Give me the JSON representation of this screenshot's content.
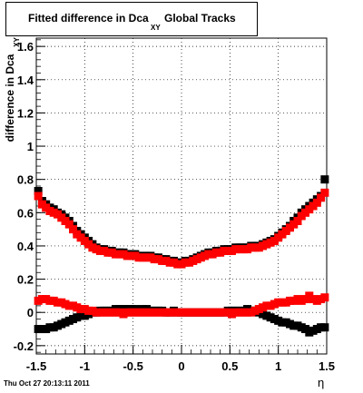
{
  "title": {
    "main": "Fitted difference in Dca",
    "sub": "XY",
    "tail": "Global Tracks"
  },
  "ylabel": "difference in Dca",
  "ylabel_sub": "XY",
  "xlabel": "η",
  "timestamp": "Thu Oct 27 20:13:11 2011",
  "colors": {
    "series_black": "#000000",
    "series_red": "#ff0000",
    "grid": "#000000",
    "background": "#ffffff"
  },
  "chart_data": {
    "type": "scatter",
    "title": "Fitted difference in Dca XY Global Tracks",
    "xlabel": "η",
    "ylabel": "difference in Dca XY",
    "xlim": [
      -1.5,
      1.5
    ],
    "ylim": [
      -0.25,
      1.65
    ],
    "xticks": [
      "-1.5",
      "-1",
      "-0.5",
      "0",
      "0.5",
      "1",
      "1.5"
    ],
    "yticks": [
      "-0.2",
      "0",
      "0.2",
      "0.4",
      "0.6",
      "0.8",
      "1",
      "1.2",
      "1.4",
      "1.6"
    ],
    "grid": true,
    "series": [
      {
        "color": "#000000",
        "x": [
          -1.48,
          -1.44,
          -1.4,
          -1.36,
          -1.32,
          -1.28,
          -1.24,
          -1.2,
          -1.16,
          -1.12,
          -1.08,
          -1.04,
          -1.0,
          -0.96,
          -0.92,
          -0.88,
          -0.84,
          -0.8,
          -0.76,
          -0.72,
          -0.68,
          -0.64,
          -0.6,
          -0.56,
          -0.52,
          -0.48,
          -0.44,
          -0.4,
          -0.36,
          -0.32,
          -0.28,
          -0.24,
          -0.2,
          -0.16,
          -0.12,
          -0.08,
          -0.04,
          0.0,
          0.04,
          0.08,
          0.12,
          0.16,
          0.2,
          0.24,
          0.28,
          0.32,
          0.36,
          0.4,
          0.44,
          0.48,
          0.52,
          0.56,
          0.6,
          0.64,
          0.68,
          0.72,
          0.76,
          0.8,
          0.84,
          0.88,
          0.92,
          0.96,
          1.0,
          1.04,
          1.08,
          1.12,
          1.16,
          1.2,
          1.24,
          1.28,
          1.32,
          1.36,
          1.4,
          1.44,
          1.48
        ],
        "y": [
          0.73,
          0.67,
          0.65,
          0.63,
          0.62,
          0.6,
          0.59,
          0.57,
          0.55,
          0.52,
          0.49,
          0.47,
          0.45,
          0.43,
          0.41,
          0.39,
          0.38,
          0.38,
          0.37,
          0.37,
          0.36,
          0.36,
          0.36,
          0.35,
          0.35,
          0.35,
          0.34,
          0.34,
          0.34,
          0.34,
          0.33,
          0.33,
          0.32,
          0.32,
          0.31,
          0.31,
          0.3,
          0.3,
          0.31,
          0.31,
          0.32,
          0.33,
          0.34,
          0.35,
          0.36,
          0.36,
          0.37,
          0.37,
          0.38,
          0.38,
          0.38,
          0.39,
          0.39,
          0.39,
          0.39,
          0.4,
          0.4,
          0.4,
          0.41,
          0.42,
          0.43,
          0.44,
          0.46,
          0.48,
          0.5,
          0.52,
          0.55,
          0.57,
          0.6,
          0.62,
          0.64,
          0.66,
          0.68,
          0.7,
          0.8
        ]
      },
      {
        "color": "#000000",
        "x": [
          -1.48,
          -1.44,
          -1.4,
          -1.36,
          -1.32,
          -1.28,
          -1.24,
          -1.2,
          -1.16,
          -1.12,
          -1.08,
          -1.04,
          -1.0,
          -0.96,
          -0.92,
          -0.88,
          -0.84,
          -0.8,
          -0.76,
          -0.72,
          -0.68,
          -0.64,
          -0.6,
          -0.56,
          -0.52,
          -0.48,
          -0.44,
          -0.4,
          -0.36,
          -0.32,
          -0.28,
          -0.24,
          -0.2,
          -0.16,
          -0.12,
          -0.08,
          -0.04,
          0.0,
          0.04,
          0.08,
          0.12,
          0.16,
          0.2,
          0.24,
          0.28,
          0.32,
          0.36,
          0.4,
          0.44,
          0.48,
          0.52,
          0.56,
          0.6,
          0.64,
          0.68,
          0.72,
          0.76,
          0.8,
          0.84,
          0.88,
          0.92,
          0.96,
          1.0,
          1.04,
          1.08,
          1.12,
          1.16,
          1.2,
          1.24,
          1.28,
          1.32,
          1.36,
          1.4,
          1.44,
          1.48
        ],
        "y": [
          -0.1,
          -0.1,
          -0.1,
          -0.09,
          -0.09,
          -0.08,
          -0.07,
          -0.06,
          -0.05,
          -0.04,
          -0.03,
          -0.02,
          -0.02,
          -0.01,
          0.0,
          0.0,
          0.01,
          0.01,
          0.01,
          0.01,
          0.02,
          0.02,
          0.02,
          0.02,
          0.02,
          0.02,
          0.01,
          0.02,
          0.02,
          0.01,
          0.01,
          0.01,
          0.01,
          0.0,
          0.0,
          0.01,
          0.0,
          0.0,
          0.0,
          0.0,
          0.0,
          0.0,
          0.0,
          0.0,
          0.0,
          0.0,
          0.0,
          0.0,
          0.0,
          0.01,
          0.01,
          0.01,
          0.01,
          0.01,
          0.02,
          0.01,
          0.01,
          0.0,
          -0.01,
          -0.02,
          -0.03,
          -0.04,
          -0.05,
          -0.06,
          -0.06,
          -0.07,
          -0.08,
          -0.08,
          -0.09,
          -0.1,
          -0.12,
          -0.11,
          -0.1,
          -0.09,
          -0.09
        ]
      },
      {
        "color": "#ff0000",
        "x": [
          -1.48,
          -1.44,
          -1.4,
          -1.36,
          -1.32,
          -1.28,
          -1.24,
          -1.2,
          -1.16,
          -1.12,
          -1.08,
          -1.04,
          -1.0,
          -0.96,
          -0.92,
          -0.88,
          -0.84,
          -0.8,
          -0.76,
          -0.72,
          -0.68,
          -0.64,
          -0.6,
          -0.56,
          -0.52,
          -0.48,
          -0.44,
          -0.4,
          -0.36,
          -0.32,
          -0.28,
          -0.24,
          -0.2,
          -0.16,
          -0.12,
          -0.08,
          -0.04,
          0.0,
          0.04,
          0.08,
          0.12,
          0.16,
          0.2,
          0.24,
          0.28,
          0.32,
          0.36,
          0.4,
          0.44,
          0.48,
          0.52,
          0.56,
          0.6,
          0.64,
          0.68,
          0.72,
          0.76,
          0.8,
          0.84,
          0.88,
          0.92,
          0.96,
          1.0,
          1.04,
          1.08,
          1.12,
          1.16,
          1.2,
          1.24,
          1.28,
          1.32,
          1.36,
          1.4,
          1.44,
          1.48
        ],
        "y": [
          0.7,
          0.65,
          0.63,
          0.61,
          0.6,
          0.59,
          0.57,
          0.55,
          0.53,
          0.5,
          0.47,
          0.45,
          0.43,
          0.41,
          0.39,
          0.38,
          0.37,
          0.37,
          0.36,
          0.36,
          0.35,
          0.35,
          0.35,
          0.34,
          0.34,
          0.34,
          0.33,
          0.33,
          0.33,
          0.33,
          0.32,
          0.32,
          0.31,
          0.31,
          0.3,
          0.3,
          0.29,
          0.29,
          0.3,
          0.3,
          0.31,
          0.32,
          0.33,
          0.34,
          0.35,
          0.35,
          0.36,
          0.36,
          0.37,
          0.37,
          0.37,
          0.38,
          0.38,
          0.38,
          0.38,
          0.39,
          0.39,
          0.39,
          0.4,
          0.41,
          0.42,
          0.43,
          0.45,
          0.47,
          0.49,
          0.51,
          0.53,
          0.55,
          0.58,
          0.6,
          0.62,
          0.64,
          0.66,
          0.69,
          0.72
        ]
      },
      {
        "color": "#ff0000",
        "x": [
          -1.48,
          -1.44,
          -1.4,
          -1.36,
          -1.32,
          -1.28,
          -1.24,
          -1.2,
          -1.16,
          -1.12,
          -1.08,
          -1.04,
          -1.0,
          -0.96,
          -0.92,
          -0.88,
          -0.84,
          -0.8,
          -0.76,
          -0.72,
          -0.68,
          -0.64,
          -0.6,
          -0.56,
          -0.52,
          -0.48,
          -0.44,
          -0.4,
          -0.36,
          -0.32,
          -0.28,
          -0.24,
          -0.2,
          -0.16,
          -0.12,
          -0.08,
          -0.04,
          0.0,
          0.04,
          0.08,
          0.12,
          0.16,
          0.2,
          0.24,
          0.28,
          0.32,
          0.36,
          0.4,
          0.44,
          0.48,
          0.52,
          0.56,
          0.6,
          0.64,
          0.68,
          0.72,
          0.76,
          0.8,
          0.84,
          0.88,
          0.92,
          0.96,
          1.0,
          1.04,
          1.08,
          1.12,
          1.16,
          1.2,
          1.24,
          1.28,
          1.32,
          1.36,
          1.4,
          1.44,
          1.48
        ],
        "y": [
          0.07,
          0.08,
          0.08,
          0.07,
          0.07,
          0.06,
          0.06,
          0.05,
          0.04,
          0.04,
          0.03,
          0.02,
          0.02,
          0.01,
          0.01,
          0.0,
          0.0,
          0.0,
          0.0,
          0.0,
          0.0,
          0.0,
          -0.01,
          0.0,
          0.0,
          0.0,
          0.0,
          0.0,
          0.0,
          0.0,
          0.0,
          0.0,
          0.0,
          0.0,
          0.0,
          0.0,
          0.0,
          0.0,
          0.0,
          0.0,
          0.0,
          0.0,
          0.0,
          0.0,
          0.0,
          0.0,
          0.0,
          0.0,
          0.0,
          0.0,
          -0.01,
          0.0,
          0.0,
          0.0,
          0.0,
          0.0,
          0.01,
          0.02,
          0.03,
          0.04,
          0.04,
          0.05,
          0.06,
          0.06,
          0.06,
          0.07,
          0.07,
          0.08,
          0.07,
          0.08,
          0.1,
          0.08,
          0.07,
          0.08,
          0.09
        ]
      }
    ]
  }
}
